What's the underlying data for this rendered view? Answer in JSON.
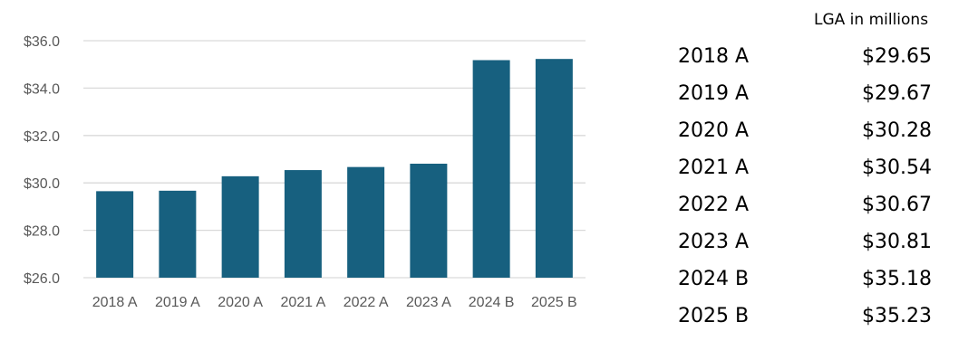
{
  "chart_data": {
    "type": "bar",
    "categories": [
      "2018 A",
      "2019 A",
      "2020 A",
      "2021 A",
      "2022 A",
      "2023 A",
      "2024 B",
      "2025 B"
    ],
    "values": [
      29.65,
      29.67,
      30.28,
      30.54,
      30.67,
      30.81,
      35.18,
      35.23
    ],
    "ylim": [
      26.0,
      36.0
    ],
    "yticks": [
      "$26.0",
      "$28.0",
      "$30.0",
      "$32.0",
      "$34.0",
      "$36.0"
    ],
    "ytick_values": [
      26,
      28,
      30,
      32,
      34,
      36
    ],
    "grid": true,
    "bar_color": "#17607F",
    "grid_color": "#D9D9D9"
  },
  "table": {
    "header": "LGA in millions",
    "rows": [
      {
        "label": "2018 A",
        "value": "$29.65"
      },
      {
        "label": "2019 A",
        "value": "$29.67"
      },
      {
        "label": "2020 A",
        "value": "$30.28"
      },
      {
        "label": "2021 A",
        "value": "$30.54"
      },
      {
        "label": "2022 A",
        "value": "$30.67"
      },
      {
        "label": "2023 A",
        "value": "$30.81"
      },
      {
        "label": "2024 B",
        "value": "$35.18"
      },
      {
        "label": "2025 B",
        "value": "$35.23"
      }
    ]
  }
}
